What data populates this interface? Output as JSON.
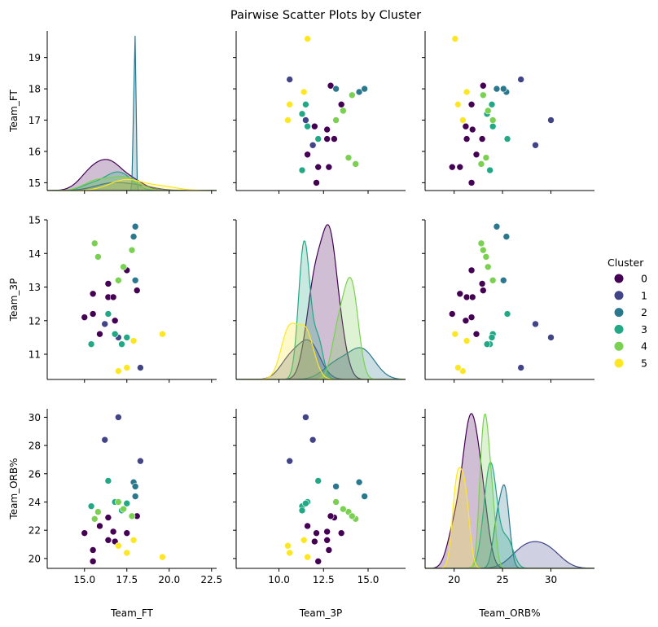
{
  "chart_data": {
    "type": "scatter",
    "title": "Pairwise Scatter Plots by Cluster",
    "variables": [
      "Team_FT",
      "Team_3P",
      "Team_ORB%"
    ],
    "legend": {
      "title": "Cluster",
      "placement": "right"
    },
    "clusters": [
      {
        "name": "0",
        "color": "#440154"
      },
      {
        "name": "1",
        "color": "#414487"
      },
      {
        "name": "2",
        "color": "#2a788e"
      },
      {
        "name": "3",
        "color": "#22a884"
      },
      {
        "name": "4",
        "color": "#7ad151"
      },
      {
        "name": "5",
        "color": "#fde725"
      }
    ],
    "axes": {
      "Team_FT": {
        "range": [
          12.8,
          22.8
        ],
        "ticks": [
          15.0,
          17.5,
          20.0,
          22.5
        ],
        "tick_labels": [
          "15.0",
          "17.5",
          "20.0",
          "22.5"
        ],
        "y_range": [
          14.75,
          19.85
        ],
        "y_ticks": [
          15,
          16,
          17,
          18,
          19
        ],
        "y_tick_labels": [
          "15",
          "16",
          "17",
          "18",
          "19"
        ]
      },
      "Team_3P": {
        "range": [
          7.6,
          17.1
        ],
        "ticks": [
          10.0,
          12.5,
          15.0
        ],
        "tick_labels": [
          "10.0",
          "12.5",
          "15.0"
        ],
        "y_range": [
          10.25,
          15.0
        ],
        "y_ticks": [
          11,
          12,
          13,
          14,
          15
        ],
        "y_tick_labels": [
          "11",
          "12",
          "13",
          "14",
          "15"
        ]
      },
      "Team_ORB%": {
        "range": [
          17.0,
          34.5
        ],
        "ticks": [
          20,
          25,
          30
        ],
        "tick_labels": [
          "20",
          "25",
          "30"
        ],
        "y_range": [
          19.3,
          30.6
        ],
        "y_ticks": [
          20,
          22,
          24,
          26,
          28,
          30
        ],
        "y_tick_labels": [
          "20",
          "22",
          "24",
          "26",
          "28",
          "30"
        ]
      }
    },
    "points": [
      {
        "cluster": 0,
        "Team_FT": 15.0,
        "Team_3P": 12.1,
        "Team_ORB%": 21.8
      },
      {
        "cluster": 0,
        "Team_FT": 15.5,
        "Team_3P": 12.8,
        "Team_ORB%": 20.6
      },
      {
        "cluster": 0,
        "Team_FT": 15.5,
        "Team_3P": 12.2,
        "Team_ORB%": 19.8
      },
      {
        "cluster": 0,
        "Team_FT": 15.9,
        "Team_3P": 11.6,
        "Team_ORB%": 22.3
      },
      {
        "cluster": 0,
        "Team_FT": 16.4,
        "Team_3P": 13.1,
        "Team_ORB%": 22.9
      },
      {
        "cluster": 0,
        "Team_FT": 16.4,
        "Team_3P": 12.7,
        "Team_ORB%": 21.3
      },
      {
        "cluster": 0,
        "Team_FT": 16.7,
        "Team_3P": 12.7,
        "Team_ORB%": 21.9
      },
      {
        "cluster": 0,
        "Team_FT": 16.8,
        "Team_3P": 12.0,
        "Team_ORB%": 21.2
      },
      {
        "cluster": 0,
        "Team_FT": 17.5,
        "Team_3P": 13.5,
        "Team_ORB%": 21.8
      },
      {
        "cluster": 0,
        "Team_FT": 18.1,
        "Team_3P": 12.9,
        "Team_ORB%": 23.0
      },
      {
        "cluster": 1,
        "Team_FT": 16.2,
        "Team_3P": 11.9,
        "Team_ORB%": 28.4
      },
      {
        "cluster": 1,
        "Team_FT": 17.0,
        "Team_3P": 11.5,
        "Team_ORB%": 30.0
      },
      {
        "cluster": 1,
        "Team_FT": 18.3,
        "Team_3P": 10.6,
        "Team_ORB%": 26.9
      },
      {
        "cluster": 2,
        "Team_FT": 17.9,
        "Team_3P": 14.5,
        "Team_ORB%": 25.4
      },
      {
        "cluster": 2,
        "Team_FT": 18.0,
        "Team_3P": 13.2,
        "Team_ORB%": 25.1
      },
      {
        "cluster": 2,
        "Team_FT": 18.0,
        "Team_3P": 14.8,
        "Team_ORB%": 24.4
      },
      {
        "cluster": 3,
        "Team_FT": 15.4,
        "Team_3P": 11.3,
        "Team_ORB%": 23.7
      },
      {
        "cluster": 3,
        "Team_FT": 16.4,
        "Team_3P": 12.2,
        "Team_ORB%": 25.5
      },
      {
        "cluster": 3,
        "Team_FT": 16.8,
        "Team_3P": 11.6,
        "Team_ORB%": 24.0
      },
      {
        "cluster": 3,
        "Team_FT": 17.2,
        "Team_3P": 11.3,
        "Team_ORB%": 23.4
      },
      {
        "cluster": 3,
        "Team_FT": 17.5,
        "Team_3P": 11.5,
        "Team_ORB%": 23.9
      },
      {
        "cluster": 4,
        "Team_FT": 15.6,
        "Team_3P": 14.3,
        "Team_ORB%": 22.8
      },
      {
        "cluster": 4,
        "Team_FT": 15.8,
        "Team_3P": 13.9,
        "Team_ORB%": 23.3
      },
      {
        "cluster": 4,
        "Team_FT": 17.0,
        "Team_3P": 13.2,
        "Team_ORB%": 24.0
      },
      {
        "cluster": 4,
        "Team_FT": 17.3,
        "Team_3P": 13.6,
        "Team_ORB%": 23.5
      },
      {
        "cluster": 4,
        "Team_FT": 17.8,
        "Team_3P": 14.1,
        "Team_ORB%": 23.0
      },
      {
        "cluster": 5,
        "Team_FT": 17.0,
        "Team_3P": 10.5,
        "Team_ORB%": 20.9
      },
      {
        "cluster": 5,
        "Team_FT": 17.5,
        "Team_3P": 10.6,
        "Team_ORB%": 20.4
      },
      {
        "cluster": 5,
        "Team_FT": 17.9,
        "Team_3P": 11.4,
        "Team_ORB%": 21.3
      },
      {
        "cluster": 5,
        "Team_FT": 19.6,
        "Team_3P": 11.6,
        "Team_ORB%": 20.1
      }
    ]
  }
}
